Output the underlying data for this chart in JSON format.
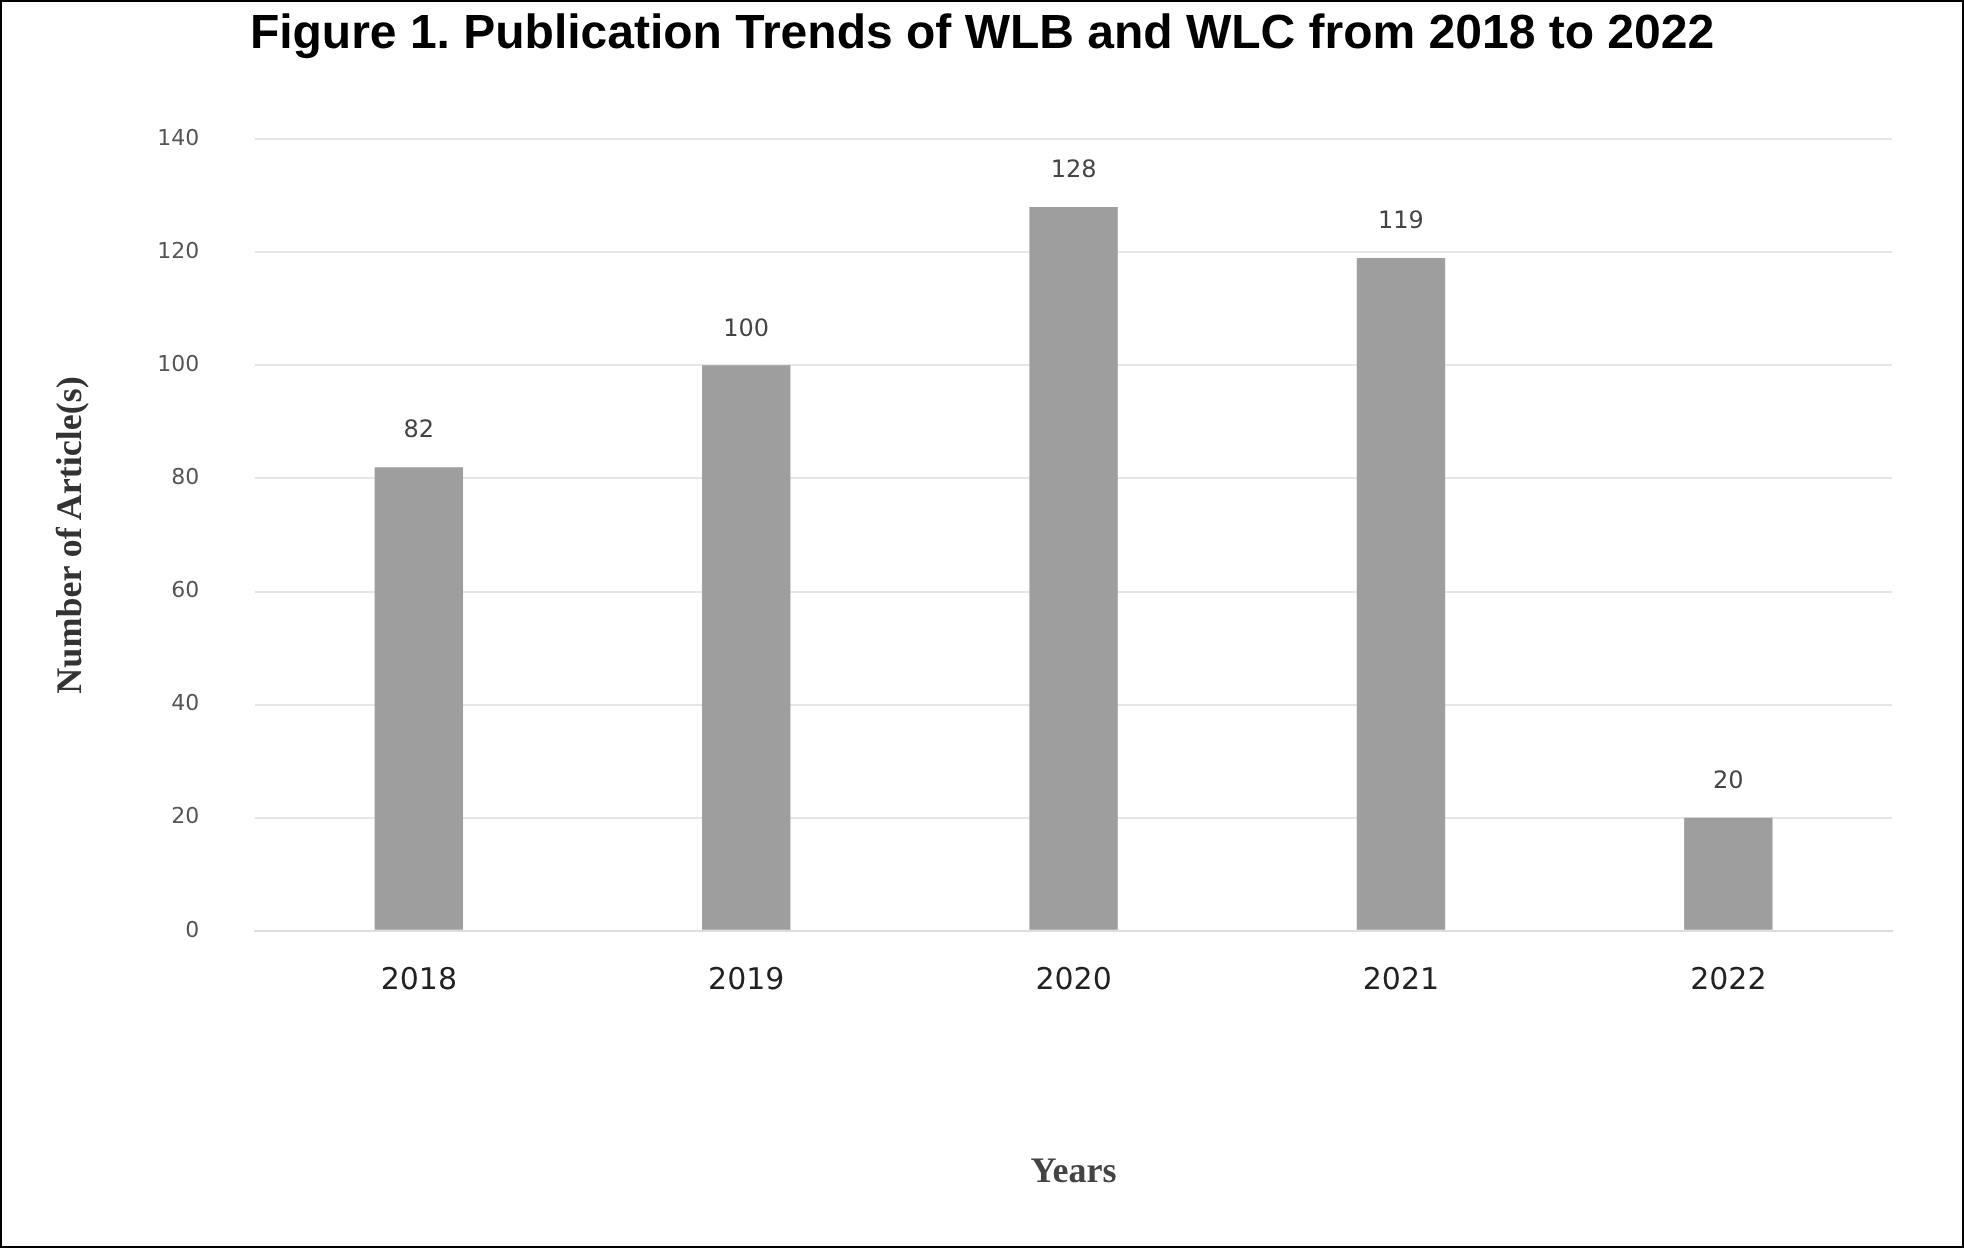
{
  "chart_data": {
    "type": "bar",
    "title": "Figure 1. Publication Trends of WLB and WLC from 2018 to 2022",
    "xlabel": "Years",
    "ylabel": "Number of Article(s)",
    "categories": [
      "2018",
      "2019",
      "2020",
      "2021",
      "2022"
    ],
    "values": [
      82,
      100,
      128,
      119,
      20
    ],
    "color": "#9e9e9e",
    "ylim": [
      0,
      140
    ],
    "yticks": [
      0,
      20,
      40,
      60,
      80,
      100,
      120,
      140
    ],
    "grid": "y",
    "legend": false,
    "data_labels": true
  }
}
